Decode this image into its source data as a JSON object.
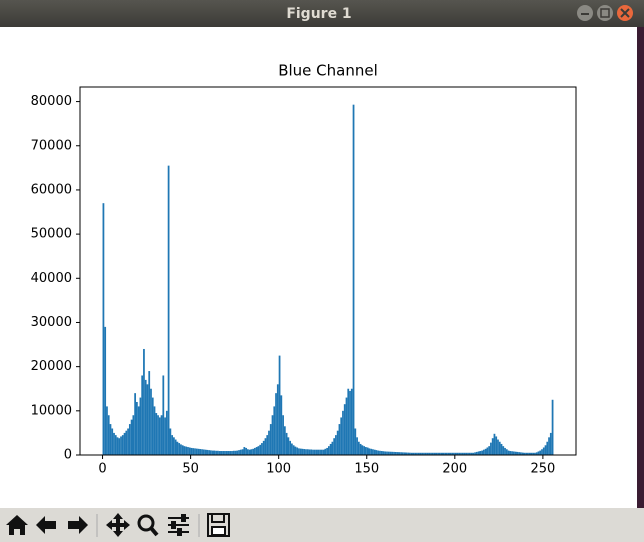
{
  "window": {
    "title": "Figure 1"
  },
  "chart_data": {
    "type": "histogram",
    "title": "Blue Channel",
    "color": "#1f77b4",
    "bins": [
      0,
      1,
      2,
      3,
      4,
      5,
      6,
      7,
      8,
      9,
      10,
      11,
      12,
      13,
      14,
      15,
      16,
      17,
      18,
      19,
      20,
      21,
      22,
      23,
      24,
      25,
      26,
      27,
      28,
      29,
      30,
      31,
      32,
      33,
      34,
      35,
      36,
      37,
      38,
      39,
      40,
      41,
      42,
      43,
      44,
      45,
      46,
      47,
      48,
      49,
      50,
      51,
      52,
      53,
      54,
      55,
      56,
      57,
      58,
      59,
      60,
      61,
      62,
      63,
      64,
      65,
      66,
      67,
      68,
      69,
      70,
      71,
      72,
      73,
      74,
      75,
      76,
      77,
      78,
      79,
      80,
      81,
      82,
      83,
      84,
      85,
      86,
      87,
      88,
      89,
      90,
      91,
      92,
      93,
      94,
      95,
      96,
      97,
      98,
      99,
      100,
      101,
      102,
      103,
      104,
      105,
      106,
      107,
      108,
      109,
      110,
      111,
      112,
      113,
      114,
      115,
      116,
      117,
      118,
      119,
      120,
      121,
      122,
      123,
      124,
      125,
      126,
      127,
      128,
      129,
      130,
      131,
      132,
      133,
      134,
      135,
      136,
      137,
      138,
      139,
      140,
      141,
      142,
      143,
      144,
      145,
      146,
      147,
      148,
      149,
      150,
      151,
      152,
      153,
      154,
      155,
      156,
      157,
      158,
      159,
      160,
      161,
      162,
      163,
      164,
      165,
      166,
      167,
      168,
      169,
      170,
      171,
      172,
      173,
      174,
      175,
      176,
      177,
      178,
      179,
      180,
      181,
      182,
      183,
      184,
      185,
      186,
      187,
      188,
      189,
      190,
      191,
      192,
      193,
      194,
      195,
      196,
      197,
      198,
      199,
      200,
      201,
      202,
      203,
      204,
      205,
      206,
      207,
      208,
      209,
      210,
      211,
      212,
      213,
      214,
      215,
      216,
      217,
      218,
      219,
      220,
      221,
      222,
      223,
      224,
      225,
      226,
      227,
      228,
      229,
      230,
      231,
      232,
      233,
      234,
      235,
      236,
      237,
      238,
      239,
      240,
      241,
      242,
      243,
      244,
      245,
      246,
      247,
      248,
      249,
      250,
      251,
      252,
      253,
      254,
      255,
      256
    ],
    "values": [
      57000,
      29000,
      11000,
      9000,
      7000,
      6000,
      5000,
      4500,
      4000,
      3800,
      4200,
      4500,
      5000,
      5500,
      6000,
      7000,
      8000,
      9000,
      14000,
      12000,
      11000,
      13000,
      18000,
      24000,
      17000,
      16000,
      19000,
      15000,
      13000,
      11000,
      9500,
      9000,
      8500,
      9000,
      18000,
      8500,
      10000,
      65500,
      6000,
      4500,
      4000,
      3500,
      3000,
      2700,
      2400,
      2200,
      2000,
      1900,
      1800,
      1700,
      1600,
      1550,
      1500,
      1450,
      1400,
      1350,
      1300,
      1250,
      1200,
      1150,
      1100,
      1050,
      1000,
      1000,
      950,
      950,
      900,
      900,
      900,
      900,
      900,
      900,
      900,
      900,
      950,
      950,
      1000,
      1100,
      1200,
      1300,
      1800,
      1600,
      1300,
      1200,
      1300,
      1400,
      1600,
      1800,
      2000,
      2300,
      2700,
      3200,
      3800,
      4500,
      5500,
      7000,
      9000,
      11000,
      14000,
      16000,
      22500,
      13500,
      9000,
      6500,
      5000,
      4000,
      3200,
      2600,
      2200,
      1900,
      1700,
      1500,
      1450,
      1400,
      1350,
      1300,
      1300,
      1250,
      1250,
      1200,
      1200,
      1200,
      1200,
      1200,
      1200,
      1200,
      1400,
      1600,
      2000,
      2500,
      3000,
      3800,
      4500,
      5500,
      7000,
      8500,
      10000,
      11500,
      13000,
      15000,
      14500,
      15000,
      79300,
      6000,
      4000,
      3000,
      2500,
      2200,
      2000,
      1800,
      1700,
      1500,
      1400,
      1300,
      1200,
      1100,
      1000,
      950,
      900,
      850,
      800,
      780,
      760,
      740,
      720,
      700,
      680,
      660,
      640,
      620,
      600,
      580,
      560,
      540,
      520,
      500,
      500,
      500,
      500,
      500,
      500,
      500,
      500,
      500,
      500,
      500,
      500,
      500,
      500,
      500,
      500,
      500,
      500,
      500,
      500,
      500,
      500,
      500,
      500,
      500,
      500,
      500,
      500,
      500,
      500,
      500,
      500,
      500,
      500,
      500,
      500,
      600,
      700,
      800,
      900,
      1000,
      1200,
      1400,
      1700,
      2000,
      2800,
      3800,
      4800,
      4200,
      3500,
      3000,
      2500,
      2000,
      1600,
      1300,
      1000,
      900,
      850,
      800,
      750,
      700,
      650,
      600,
      550,
      500,
      500,
      500,
      500,
      500,
      500,
      500,
      600,
      800,
      1000,
      1300,
      1700,
      2200,
      3000,
      4000,
      5000,
      12500
    ],
    "xlim": [
      -12.8,
      268.8
    ],
    "xticks": [
      0,
      50,
      100,
      150,
      200,
      250
    ],
    "ylim": [
      0,
      83300
    ],
    "yticks": [
      0,
      10000,
      20000,
      30000,
      40000,
      50000,
      60000,
      70000,
      80000
    ]
  }
}
